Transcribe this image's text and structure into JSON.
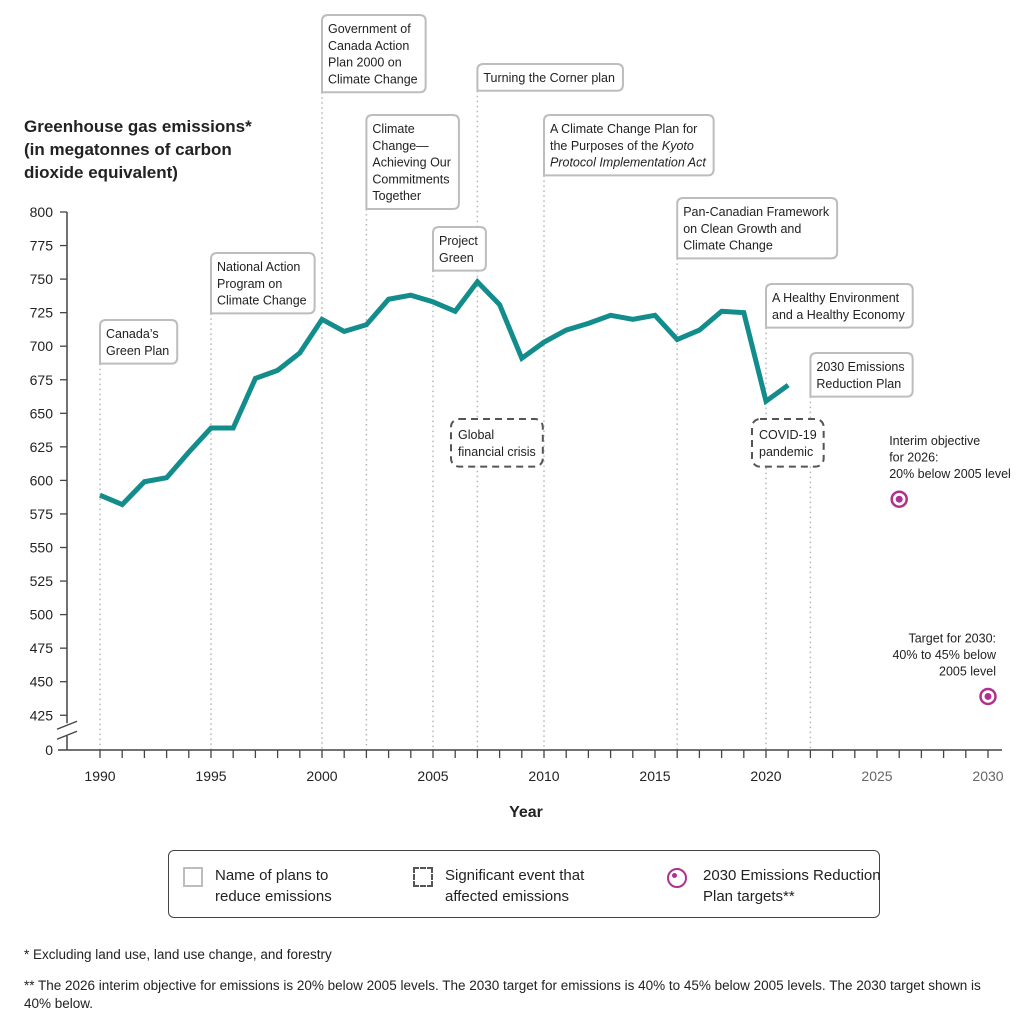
{
  "colors": {
    "line": "#138c8c",
    "target": "#b0308f",
    "plan_box": "#bdbdbd",
    "event_box": "#555555",
    "guide": "#b5b5b5",
    "axis": "#444444"
  },
  "chart_data": {
    "type": "line",
    "title": "",
    "ylabel": "Greenhouse gas emissions* (in megatonnes of carbon dioxide equivalent)",
    "ylabel_lines": [
      "Greenhouse gas emissions*",
      "(in megatonnes of carbon",
      "dioxide equivalent)"
    ],
    "xlabel": "Year",
    "xlim": [
      1990,
      2030
    ],
    "ylim": [
      425,
      800
    ],
    "y_axis_break": true,
    "y_ticks": [
      800,
      775,
      750,
      725,
      700,
      675,
      650,
      625,
      600,
      575,
      550,
      525,
      500,
      475,
      450,
      425,
      0
    ],
    "x_ticks": [
      1990,
      1995,
      2000,
      2005,
      2010,
      2015,
      2020,
      2025,
      2030
    ],
    "x_ticks_future": [
      2025,
      2030
    ],
    "grid": false,
    "series": [
      {
        "name": "Greenhouse gas emissions",
        "x": [
          1990,
          1991,
          1992,
          1993,
          1994,
          1995,
          1996,
          1997,
          1998,
          1999,
          2000,
          2001,
          2002,
          2003,
          2004,
          2005,
          2006,
          2007,
          2008,
          2009,
          2010,
          2011,
          2012,
          2013,
          2014,
          2015,
          2016,
          2017,
          2018,
          2019,
          2020,
          2021
        ],
        "values": [
          589,
          582,
          599,
          602,
          621,
          639,
          639,
          676,
          682,
          695,
          720,
          711,
          716,
          735,
          738,
          733,
          726,
          748,
          731,
          691,
          703,
          712,
          717,
          723,
          720,
          723,
          705,
          712,
          726,
          725,
          659,
          671
        ]
      }
    ],
    "targets": [
      {
        "year": 2026,
        "value": 586,
        "label_lines": [
          "Interim objective",
          "for 2026:",
          "20% below 2005 level"
        ],
        "align": "left"
      },
      {
        "year": 2030,
        "value": 439,
        "label_lines": [
          "Target for 2030:",
          "40% to 45% below",
          "2005 level"
        ],
        "align": "right"
      }
    ],
    "plans": [
      {
        "year": 1990,
        "lines": [
          "Canada’s",
          "Green Plan"
        ]
      },
      {
        "year": 1995,
        "lines": [
          "National Action",
          "Program on",
          "Climate Change"
        ]
      },
      {
        "year": 2000,
        "lines": [
          "Government of",
          "Canada Action",
          "Plan 2000 on",
          "Climate Change"
        ]
      },
      {
        "year": 2002,
        "lines": [
          "Climate",
          "Change—",
          "Achieving Our",
          "Commitments",
          "Together"
        ]
      },
      {
        "year": 2005,
        "lines": [
          "Project",
          "Green"
        ]
      },
      {
        "year": 2007,
        "lines": [
          "Turning the Corner plan"
        ]
      },
      {
        "year": 2010,
        "lines": [
          "A Climate Change Plan for",
          "the Purposes of the |Kyoto|",
          "|Protocol Implementation Act|"
        ]
      },
      {
        "year": 2016,
        "lines": [
          "Pan-Canadian Framework",
          "on Clean Growth and",
          "Climate Change"
        ]
      },
      {
        "year": 2020,
        "lines": [
          "A Healthy Environment",
          "and a Healthy Economy"
        ]
      },
      {
        "year": 2022,
        "lines": [
          "2030 Emissions",
          "Reduction Plan"
        ]
      }
    ],
    "events": [
      {
        "year": 2008,
        "lines": [
          "Global",
          "financial crisis"
        ]
      },
      {
        "year": 2020,
        "lines": [
          "COVID-19",
          "pandemic"
        ]
      }
    ]
  },
  "legend": {
    "items": [
      {
        "type": "plan",
        "label": "Name of plans to reduce emissions"
      },
      {
        "type": "event",
        "label": "Significant event that affected emissions"
      },
      {
        "type": "target",
        "label": "2030 Emissions Reduction Plan targets**"
      }
    ]
  },
  "footnotes": {
    "one": "* Excluding land use, land use change, and forestry",
    "two": "** The 2026 interim objective for emissions is 20% below 2005 levels. The 2030 target for emissions is 40% to 45% below 2005 levels. The 2030 target shown is 40% below."
  }
}
